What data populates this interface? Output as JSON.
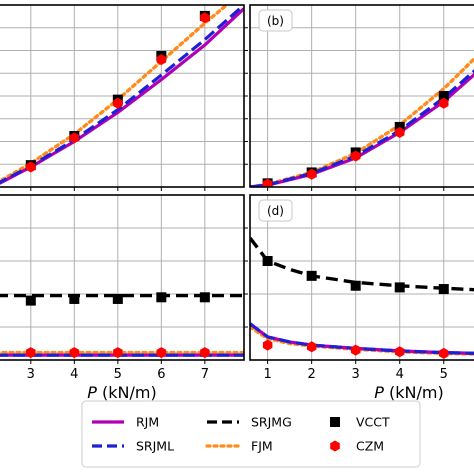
{
  "chart_data": [
    {
      "panel": "top-left",
      "type": "line",
      "panel_label": "",
      "x_ticks": [
        3,
        4,
        5,
        6,
        7
      ],
      "xlim": [
        2.2,
        7.9
      ],
      "ylim": [
        0,
        1
      ],
      "xlabel": "",
      "grid": true,
      "series": [
        {
          "name": "RJM",
          "x": [
            2.2,
            3,
            4,
            5,
            6,
            7,
            7.9
          ],
          "y": [
            0.01,
            0.11,
            0.25,
            0.41,
            0.59,
            0.78,
            0.98
          ]
        },
        {
          "name": "SRJML",
          "x": [
            2.2,
            3,
            4,
            5,
            6,
            7,
            7.9
          ],
          "y": [
            0.015,
            0.115,
            0.26,
            0.425,
            0.615,
            0.81,
            1.0
          ]
        },
        {
          "name": "FJM",
          "x": [
            2.2,
            3,
            4,
            5,
            6,
            7,
            7.6
          ],
          "y": [
            0.02,
            0.13,
            0.29,
            0.48,
            0.69,
            0.9,
            1.02
          ]
        },
        {
          "name": "VCCT",
          "x": [
            3,
            4,
            5,
            6,
            7
          ],
          "y": [
            0.12,
            0.28,
            0.48,
            0.72,
            0.94
          ]
        },
        {
          "name": "CZM",
          "x": [
            3,
            4,
            5,
            6,
            7
          ],
          "y": [
            0.11,
            0.27,
            0.46,
            0.7,
            0.93
          ]
        }
      ]
    },
    {
      "panel": "top-right",
      "type": "line",
      "panel_label": "(b)",
      "x_ticks": [
        1,
        2,
        3,
        4,
        5
      ],
      "xlim": [
        0.6,
        5.8
      ],
      "ylim": [
        0,
        1
      ],
      "xlabel": "",
      "grid": true,
      "series": [
        {
          "name": "RJM",
          "x": [
            0.6,
            1,
            2,
            3,
            4,
            5,
            5.8
          ],
          "y": [
            0.0,
            0.01,
            0.07,
            0.16,
            0.3,
            0.47,
            0.64
          ]
        },
        {
          "name": "SRJML",
          "x": [
            0.6,
            1,
            2,
            3,
            4,
            5,
            5.8
          ],
          "y": [
            0.0,
            0.012,
            0.075,
            0.17,
            0.31,
            0.49,
            0.66
          ]
        },
        {
          "name": "FJM",
          "x": [
            0.6,
            1,
            2,
            3,
            4,
            5,
            5.8
          ],
          "y": [
            0.0,
            0.015,
            0.08,
            0.185,
            0.34,
            0.54,
            0.73
          ]
        },
        {
          "name": "VCCT",
          "x": [
            1,
            2,
            3,
            4,
            5
          ],
          "y": [
            0.02,
            0.08,
            0.19,
            0.33,
            0.5
          ]
        },
        {
          "name": "CZM",
          "x": [
            1,
            2,
            3,
            4,
            5
          ],
          "y": [
            0.015,
            0.07,
            0.17,
            0.3,
            0.46
          ]
        }
      ]
    },
    {
      "panel": "bottom-left",
      "type": "line",
      "panel_label": "",
      "x_ticks": [
        3,
        4,
        5,
        6,
        7
      ],
      "xlim": [
        2.2,
        7.9
      ],
      "ylim": [
        0,
        1
      ],
      "xlabel": "P (kN/m)",
      "grid": true,
      "series": [
        {
          "name": "RJM",
          "x": [
            2.2,
            7.9
          ],
          "y": [
            0.03,
            0.03
          ]
        },
        {
          "name": "SRJML",
          "x": [
            2.2,
            7.9
          ],
          "y": [
            0.03,
            0.03
          ]
        },
        {
          "name": "FJM",
          "x": [
            2.2,
            7.9
          ],
          "y": [
            0.045,
            0.045
          ]
        },
        {
          "name": "SRJMG",
          "x": [
            2.2,
            7.9
          ],
          "y": [
            0.39,
            0.39
          ]
        },
        {
          "name": "VCCT",
          "x": [
            3,
            4,
            5,
            6,
            7
          ],
          "y": [
            0.36,
            0.37,
            0.37,
            0.38,
            0.38
          ]
        },
        {
          "name": "CZM",
          "x": [
            3,
            4,
            5,
            6,
            7
          ],
          "y": [
            0.045,
            0.045,
            0.045,
            0.045,
            0.045
          ]
        }
      ]
    },
    {
      "panel": "bottom-right",
      "type": "line",
      "panel_label": "(d)",
      "x_ticks": [
        1,
        2,
        3,
        4,
        5
      ],
      "xlim": [
        0.6,
        5.8
      ],
      "ylim": [
        0,
        1
      ],
      "xlabel": "P (kN/m)",
      "grid": true,
      "series": [
        {
          "name": "RJM",
          "x": [
            0.6,
            1,
            1.5,
            2,
            3,
            4,
            5,
            5.8
          ],
          "y": [
            0.22,
            0.14,
            0.11,
            0.09,
            0.07,
            0.055,
            0.045,
            0.04
          ]
        },
        {
          "name": "SRJML",
          "x": [
            0.6,
            1,
            1.5,
            2,
            3,
            4,
            5,
            5.8
          ],
          "y": [
            0.22,
            0.14,
            0.11,
            0.09,
            0.07,
            0.055,
            0.045,
            0.04
          ]
        },
        {
          "name": "FJM",
          "x": [
            0.6,
            1,
            1.5,
            2,
            3,
            4,
            5,
            5.8
          ],
          "y": [
            0.2,
            0.13,
            0.1,
            0.085,
            0.065,
            0.05,
            0.04,
            0.035
          ]
        },
        {
          "name": "SRJMG",
          "x": [
            0.6,
            1,
            1.5,
            2,
            3,
            4,
            5,
            5.8
          ],
          "y": [
            0.74,
            0.6,
            0.55,
            0.51,
            0.47,
            0.45,
            0.435,
            0.425
          ]
        },
        {
          "name": "VCCT",
          "x": [
            1,
            2,
            3,
            4,
            5
          ],
          "y": [
            0.6,
            0.51,
            0.45,
            0.44,
            0.43
          ]
        },
        {
          "name": "CZM",
          "x": [
            1,
            2,
            3,
            4,
            5
          ],
          "y": [
            0.09,
            0.08,
            0.06,
            0.05,
            0.04
          ]
        }
      ]
    }
  ],
  "legend": {
    "placement": "bottom-center",
    "entries": [
      {
        "label": "RJM",
        "style": "solid",
        "color": "#b000b5"
      },
      {
        "label": "SRJMG",
        "style": "dashed",
        "color": "#000000"
      },
      {
        "label": "VCCT",
        "style": "square",
        "color": "#000000"
      },
      {
        "label": "SRJML",
        "style": "dashed",
        "color": "#1f1fd6"
      },
      {
        "label": "FJM",
        "style": "dotted",
        "color": "#ff8c1a"
      },
      {
        "label": "CZM",
        "style": "hexagon",
        "color": "#ff0000"
      }
    ]
  },
  "colors": {
    "RJM": "#b000b5",
    "SRJML": "#1f1fd6",
    "SRJMG": "#000000",
    "FJM": "#ff8c1a",
    "VCCT": "#000000",
    "CZM": "#ff0000",
    "grid": "#b0b0b0"
  }
}
